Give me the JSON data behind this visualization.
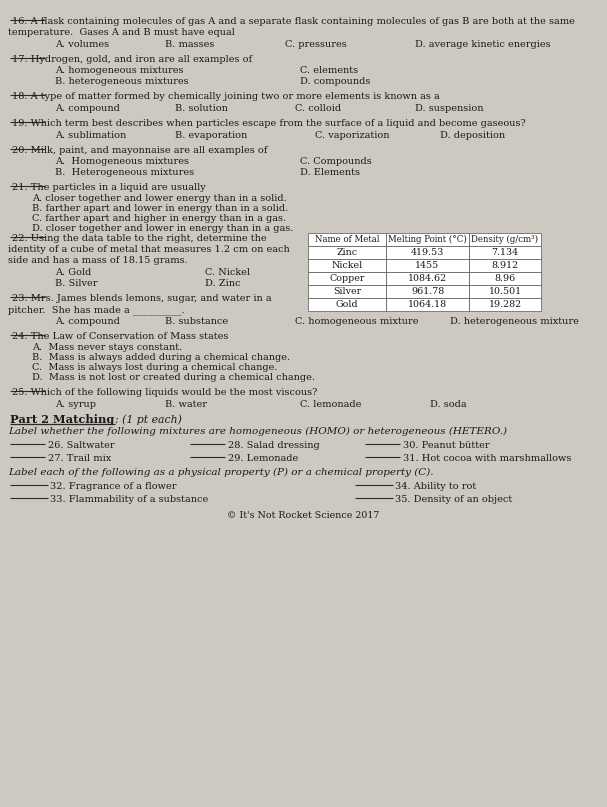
{
  "bg_color": "#cdc8c0",
  "text_color": "#1a1a1a",
  "table_headers": [
    "Name of Metal",
    "Melting Point (°C)",
    "Density (g/cm³)"
  ],
  "table_data": [
    [
      "Zinc",
      "419.53",
      "7.134"
    ],
    [
      "Nickel",
      "1455",
      "8.912"
    ],
    [
      "Copper",
      "1084.62",
      "8.96"
    ],
    [
      "Silver",
      "961.78",
      "10.501"
    ],
    [
      "Gold",
      "1064.18",
      "19.282"
    ]
  ],
  "footer": "© It's Not Rocket Science 2017"
}
